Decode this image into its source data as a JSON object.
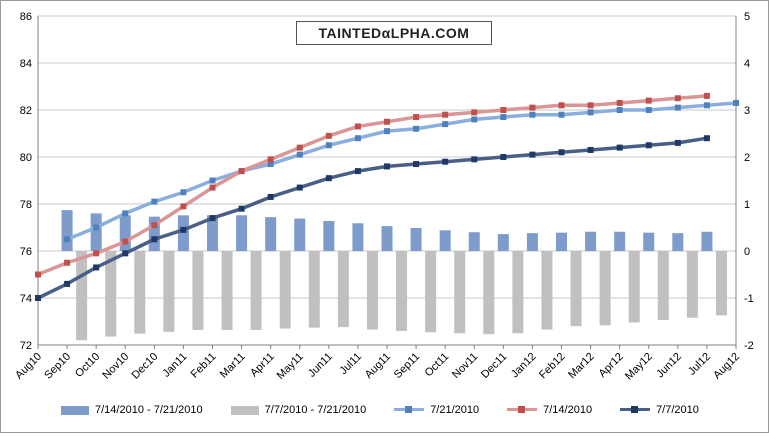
{
  "logo_text": "TAINTEDαLPHA.COM",
  "chart_data": {
    "type": "bar+line",
    "categories": [
      "Aug10",
      "Sep10",
      "Oct10",
      "Nov10",
      "Dec10",
      "Jan11",
      "Feb11",
      "Mar11",
      "Apr11",
      "May11",
      "Jun11",
      "Jul11",
      "Aug11",
      "Sep11",
      "Oct11",
      "Nov11",
      "Dec11",
      "Jan12",
      "Feb12",
      "Mar12",
      "Apr12",
      "May12",
      "Jun12",
      "Jul12",
      "Aug12"
    ],
    "left_axis": {
      "min": 72,
      "max": 86,
      "ticks": [
        72,
        74,
        76,
        78,
        80,
        82,
        84,
        86
      ]
    },
    "right_axis": {
      "min": -2,
      "max": 5,
      "ticks": [
        -2,
        -1,
        0,
        1,
        2,
        3,
        4,
        5
      ]
    },
    "grid": true,
    "legend_position": "bottom",
    "bar_series": [
      {
        "name": "7/14/2010 - 7/21/2010",
        "color": "#7d9ccc",
        "axis": "right",
        "values": [
          null,
          0.87,
          0.8,
          0.76,
          0.73,
          0.76,
          0.76,
          0.76,
          0.72,
          0.69,
          0.64,
          0.59,
          0.53,
          0.49,
          0.44,
          0.4,
          0.36,
          0.38,
          0.39,
          0.41,
          0.41,
          0.39,
          0.38,
          0.41,
          null
        ]
      },
      {
        "name": "7/7/2010 - 7/21/2010",
        "color": "#c0c0c0",
        "axis": "right",
        "values": [
          null,
          -1.9,
          -1.82,
          -1.76,
          -1.72,
          -1.68,
          -1.68,
          -1.68,
          -1.65,
          -1.63,
          -1.62,
          -1.67,
          -1.7,
          -1.73,
          -1.75,
          -1.77,
          -1.75,
          -1.67,
          -1.6,
          -1.58,
          -1.52,
          -1.47,
          -1.42,
          -1.37,
          null
        ]
      }
    ],
    "line_series": [
      {
        "name": "7/21/2010",
        "color": "#8aaedd",
        "marker_color": "#4f81bd",
        "axis": "left",
        "values": [
          null,
          76.5,
          77.0,
          77.6,
          78.1,
          78.5,
          79.0,
          79.4,
          79.7,
          80.1,
          80.5,
          80.8,
          81.1,
          81.2,
          81.4,
          81.6,
          81.7,
          81.8,
          81.8,
          81.9,
          82.0,
          82.0,
          82.1,
          82.2,
          82.3
        ]
      },
      {
        "name": "7/14/2010",
        "color": "#d99694",
        "marker_color": "#c0504d",
        "axis": "left",
        "values": [
          75.0,
          75.5,
          75.9,
          76.4,
          77.1,
          77.9,
          78.7,
          79.4,
          79.9,
          80.4,
          80.9,
          81.3,
          81.5,
          81.7,
          81.8,
          81.9,
          82.0,
          82.1,
          82.2,
          82.2,
          82.3,
          82.4,
          82.5,
          82.6,
          null
        ]
      },
      {
        "name": "7/7/2010",
        "color": "#4a5f87",
        "marker_color": "#1f3864",
        "axis": "left",
        "values": [
          74.0,
          74.6,
          75.3,
          75.9,
          76.5,
          76.9,
          77.4,
          77.8,
          78.3,
          78.7,
          79.1,
          79.4,
          79.6,
          79.7,
          79.8,
          79.9,
          80.0,
          80.1,
          80.2,
          80.3,
          80.4,
          80.5,
          80.6,
          80.8,
          null
        ]
      }
    ]
  }
}
